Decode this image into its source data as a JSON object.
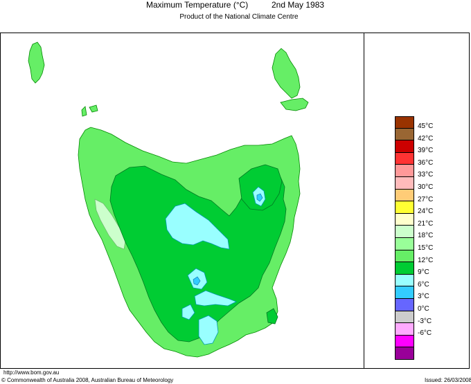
{
  "header": {
    "title": "Maximum Temperature (°C)",
    "date": "2nd May 1983",
    "subtitle": "Product of the National Climate Centre"
  },
  "legend": {
    "items": [
      {
        "label": "45°C",
        "color": "#993300"
      },
      {
        "label": "42°C",
        "color": "#996633"
      },
      {
        "label": "39°C",
        "color": "#cc0000"
      },
      {
        "label": "36°C",
        "color": "#ff3333"
      },
      {
        "label": "33°C",
        "color": "#ff9999"
      },
      {
        "label": "30°C",
        "color": "#ffbbbb"
      },
      {
        "label": "27°C",
        "color": "#ffcc77"
      },
      {
        "label": "24°C",
        "color": "#ffff33"
      },
      {
        "label": "21°C",
        "color": "#ffffcc"
      },
      {
        "label": "18°C",
        "color": "#ccffcc"
      },
      {
        "label": "15°C",
        "color": "#99ff99"
      },
      {
        "label": "12°C",
        "color": "#66ee66"
      },
      {
        "label": "9°C",
        "color": "#00cc33"
      },
      {
        "label": "6°C",
        "color": "#99ffff"
      },
      {
        "label": "3°C",
        "color": "#33ccff"
      },
      {
        "label": "0°C",
        "color": "#6666ff"
      },
      {
        "label": "-3°C",
        "color": "#cccccc"
      },
      {
        "label": "-6°C",
        "color": "#ffaaff"
      },
      {
        "label": "",
        "color": "#ff00ff"
      },
      {
        "label": "",
        "color": "#990099"
      }
    ]
  },
  "footer": {
    "url": "http://www.bom.gov.au",
    "copyright": "© Commonwealth of Australia 2008, Australian Bureau of Meteorology",
    "issued": "Issued: 26/03/2008"
  },
  "map_colors": {
    "land_light": "#66ee66",
    "land_dark": "#00cc33",
    "cool": "#99ffff",
    "cold": "#33ccff",
    "warm": "#ccffcc"
  }
}
